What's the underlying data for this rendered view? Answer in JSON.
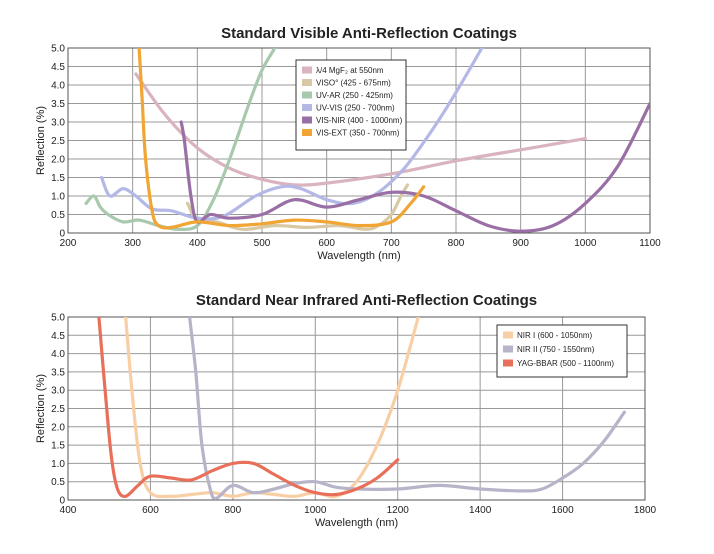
{
  "chart_data": [
    {
      "type": "line",
      "title": "Standard Visible Anti-Reflection Coatings",
      "xlabel": "Wavelength (nm)",
      "ylabel": "Reflection (%)",
      "xlim": [
        200,
        1100
      ],
      "ylim": [
        0,
        5.0
      ],
      "xticks": [
        "200",
        "300",
        "400",
        "500",
        "600",
        "700",
        "800",
        "900",
        "1000",
        "1100"
      ],
      "yticks": [
        "0",
        "0.5",
        "1.0",
        "1.5",
        "2.0",
        "2.5",
        "3.0",
        "3.5",
        "4.0",
        "4.5",
        "5.0"
      ],
      "grid": true,
      "legend_position": "top-center",
      "series": [
        {
          "name": "λ/4 MgF₂ at 550nm",
          "color": "#d9b3bd",
          "x": [
            305,
            350,
            400,
            450,
            500,
            550,
            600,
            700,
            800,
            900,
            1000
          ],
          "y": [
            4.3,
            3.2,
            2.3,
            1.75,
            1.45,
            1.3,
            1.35,
            1.6,
            1.95,
            2.25,
            2.55
          ]
        },
        {
          "name": "VISO° (425 - 675nm)",
          "color": "#d8c9a4",
          "x": [
            385,
            400,
            430,
            470,
            520,
            570,
            620,
            660,
            680,
            700,
            715,
            725
          ],
          "y": [
            0.8,
            0.35,
            0.3,
            0.1,
            0.2,
            0.15,
            0.2,
            0.1,
            0.2,
            0.5,
            1.0,
            1.3
          ]
        },
        {
          "name": "UV-AR (250 - 425nm)",
          "color": "#a9c9ae",
          "x": [
            228,
            240,
            250,
            262,
            285,
            310,
            340,
            370,
            400,
            425,
            450,
            480,
            500,
            520
          ],
          "y": [
            0.8,
            1.0,
            0.7,
            0.5,
            0.3,
            0.35,
            0.2,
            0.1,
            0.2,
            0.9,
            2.0,
            3.5,
            4.4,
            5.0
          ]
        },
        {
          "name": "UV-VIS (250 - 700nm)",
          "color": "#b3b8e6",
          "x": [
            252,
            265,
            285,
            305,
            330,
            360,
            400,
            440,
            490,
            530,
            560,
            600,
            640,
            680,
            720,
            760,
            800,
            840
          ],
          "y": [
            1.5,
            1.0,
            1.2,
            1.0,
            0.65,
            0.6,
            0.4,
            0.45,
            1.0,
            1.25,
            1.2,
            0.9,
            0.8,
            1.1,
            1.75,
            2.7,
            3.8,
            5.0
          ]
        },
        {
          "name": "VIS-NIR (400 - 1000nm)",
          "color": "#9a6fa5",
          "x": [
            375,
            380,
            390,
            400,
            420,
            450,
            500,
            550,
            600,
            650,
            700,
            750,
            800,
            850,
            900,
            950,
            1000,
            1050,
            1100
          ],
          "y": [
            3.0,
            2.5,
            1.0,
            0.3,
            0.5,
            0.4,
            0.5,
            0.9,
            0.7,
            0.9,
            1.1,
            1.0,
            0.6,
            0.2,
            0.05,
            0.2,
            0.8,
            1.8,
            3.5
          ]
        },
        {
          "name": "VIS-EXT (350 - 700nm)",
          "color": "#f0a534",
          "x": [
            310,
            315,
            320,
            330,
            340,
            360,
            400,
            450,
            500,
            550,
            600,
            650,
            700,
            730,
            750
          ],
          "y": [
            5.0,
            3.5,
            2.0,
            0.6,
            0.2,
            0.15,
            0.3,
            0.2,
            0.25,
            0.35,
            0.3,
            0.2,
            0.3,
            0.8,
            1.25
          ]
        }
      ]
    },
    {
      "type": "line",
      "title": "Standard Near Infrared Anti-Reflection Coatings",
      "xlabel": "Wavelength (nm)",
      "ylabel": "Reflection (%)",
      "xlim": [
        400,
        1800
      ],
      "ylim": [
        0,
        5.0
      ],
      "xticks": [
        "400",
        "600",
        "800",
        "1000",
        "1200",
        "1400",
        "1600",
        "1800"
      ],
      "yticks": [
        "0",
        "0.5",
        "1.0",
        "1.5",
        "2.0",
        "2.5",
        "3.0",
        "3.5",
        "4.0",
        "4.5",
        "5.0"
      ],
      "grid": true,
      "legend_position": "top-right",
      "series": [
        {
          "name": "NIR I (600 - 1050nm)",
          "color": "#f8cfa5",
          "x": [
            540,
            555,
            575,
            600,
            650,
            700,
            750,
            800,
            850,
            900,
            950,
            1000,
            1050,
            1100,
            1150,
            1200,
            1250
          ],
          "y": [
            5.0,
            3.0,
            1.0,
            0.2,
            0.1,
            0.15,
            0.2,
            0.1,
            0.2,
            0.15,
            0.1,
            0.2,
            0.1,
            0.5,
            1.5,
            3.0,
            5.0
          ]
        },
        {
          "name": "NIR II (750 - 1550nm)",
          "color": "#b7b4c9",
          "x": [
            695,
            710,
            725,
            745,
            760,
            800,
            850,
            900,
            950,
            1000,
            1050,
            1100,
            1200,
            1300,
            1400,
            1500,
            1550,
            1600,
            1650,
            1700,
            1750
          ],
          "y": [
            5.0,
            3.5,
            1.5,
            0.3,
            0.05,
            0.4,
            0.2,
            0.3,
            0.45,
            0.5,
            0.35,
            0.3,
            0.3,
            0.4,
            0.3,
            0.25,
            0.3,
            0.6,
            1.0,
            1.6,
            2.4
          ]
        },
        {
          "name": "YAG-BBAR (500 - 1100nm)",
          "color": "#e8705a",
          "x": [
            475,
            490,
            505,
            520,
            540,
            570,
            600,
            650,
            700,
            750,
            800,
            850,
            900,
            950,
            1000,
            1050,
            1100,
            1150,
            1200
          ],
          "y": [
            5.0,
            3.0,
            1.2,
            0.3,
            0.1,
            0.4,
            0.65,
            0.6,
            0.55,
            0.8,
            1.0,
            1.0,
            0.7,
            0.4,
            0.2,
            0.15,
            0.3,
            0.6,
            1.1
          ]
        }
      ]
    }
  ]
}
